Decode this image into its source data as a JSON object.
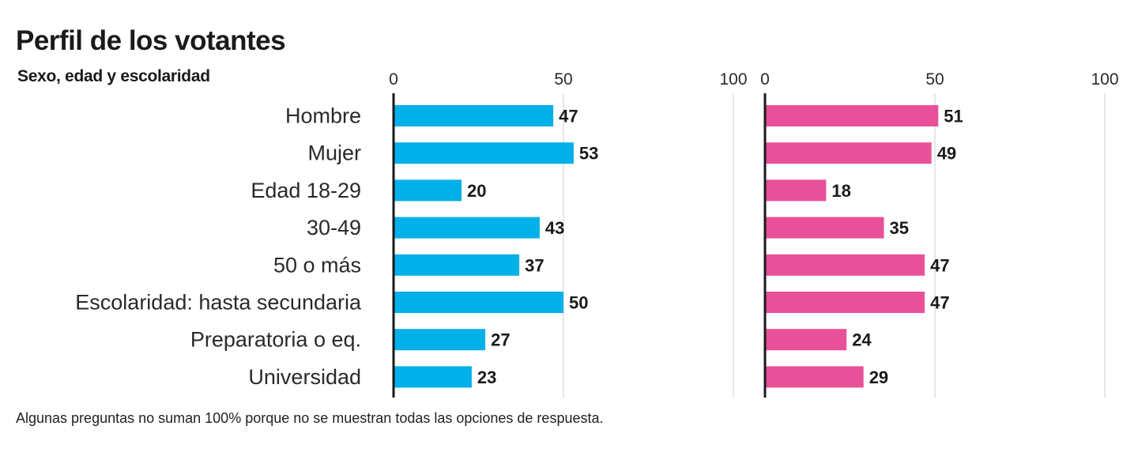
{
  "title": "Perfil de los votantes",
  "subtitle": "Sexo, edad y escolaridad",
  "note": "Algunas preguntas no suman 100% porque no se muestran todas las opciones de respuesta.",
  "chart_data": {
    "type": "bar",
    "orientation": "horizontal",
    "categories": [
      "Hombre",
      "Mujer",
      "Edad 18-29",
      "30-49",
      "50 o más",
      "Escolaridad: hasta secundaria",
      "Preparatoria o eq.",
      "Universidad"
    ],
    "xlim": [
      0,
      100
    ],
    "ticks": [
      "0",
      "50",
      "100"
    ],
    "grid": true,
    "series": [
      {
        "values": [
          47,
          53,
          20,
          43,
          37,
          50,
          27,
          23
        ],
        "color": "#00b0e8"
      },
      {
        "values": [
          51,
          49,
          18,
          35,
          47,
          47,
          24,
          29
        ],
        "color": "#e8519a"
      }
    ]
  }
}
